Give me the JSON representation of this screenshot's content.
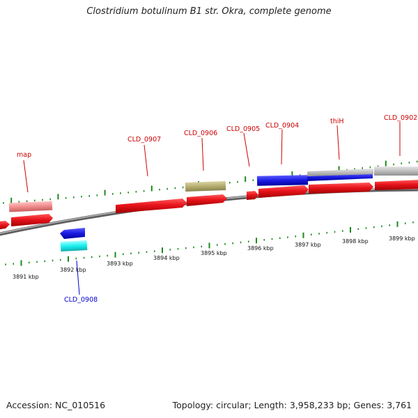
{
  "header": {
    "title": "Clostridium botulinum B1 str. Okra, complete genome"
  },
  "footer": {
    "accession": "Accession: NC_010516",
    "topology": "Topology: circular; Length: 3,958,233 bp; Genes: 3,761"
  },
  "colors": {
    "forward_gene": "#e8141c",
    "pseudo_gene": "#f08c8c",
    "reverse_blue": "#1a1ae0",
    "reverse_cyan": "#19f0f0",
    "olive_feature": "#b5ad6e",
    "gray_feature": "#bdbdbd",
    "backbone": "#7a7a7a",
    "tick": "#1a8a1a",
    "label_red": "#cc0000",
    "label_blue": "#0000cc"
  },
  "scale": {
    "kbp_labels": [
      "3891 kbp",
      "3892 kbp",
      "3893 kbp",
      "3894 kbp",
      "3895 kbp",
      "3896 kbp",
      "3897 kbp",
      "3898 kbp",
      "3899 kbp"
    ]
  },
  "genes": [
    {
      "label": "map",
      "color": "label_red"
    },
    {
      "label": "CLD_0907",
      "color": "label_red"
    },
    {
      "label": "CLD_0906",
      "color": "label_red"
    },
    {
      "label": "CLD_0905",
      "color": "label_red"
    },
    {
      "label": "CLD_0904",
      "color": "label_red"
    },
    {
      "label": "thiH",
      "color": "label_red"
    },
    {
      "label": "CLD_0902",
      "color": "label_red"
    },
    {
      "label": "CLD_0908",
      "color": "label_blue"
    }
  ]
}
